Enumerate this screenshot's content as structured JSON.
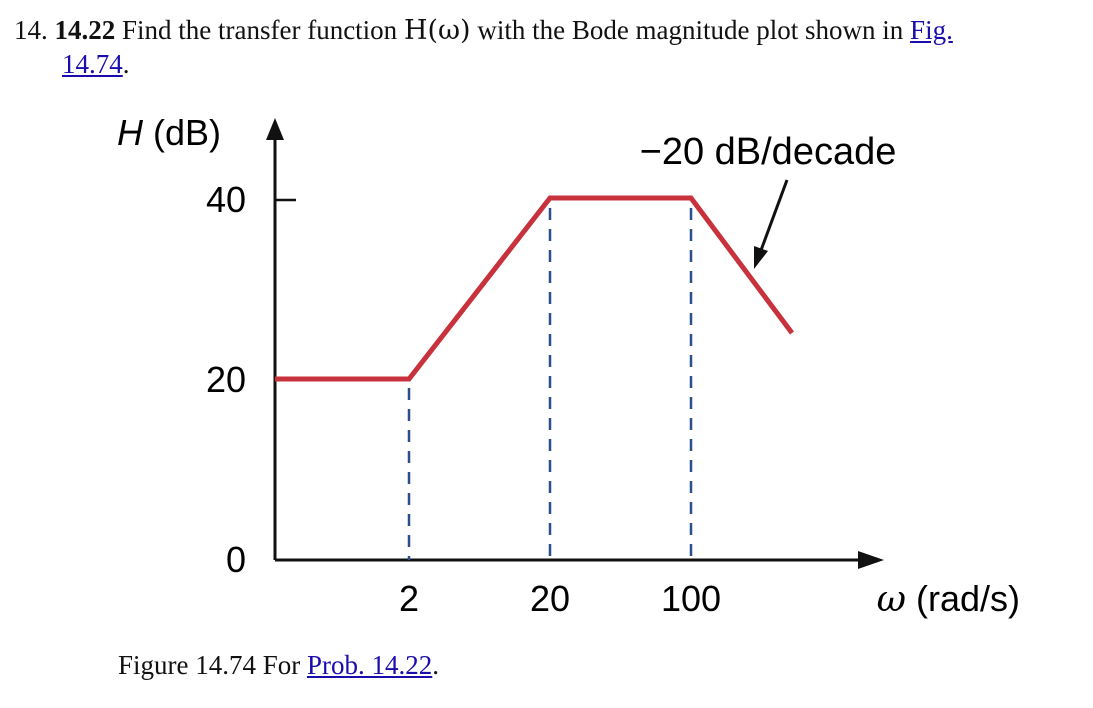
{
  "problem": {
    "number": "14.",
    "id": "14.22",
    "text_before": "Find the transfer function",
    "math": "H(ω)",
    "text_after": "with the Bode magnitude plot shown in",
    "fig_link_part1": "Fig.",
    "fig_link_part2": "14.74",
    "trailing_period": "."
  },
  "figure": {
    "caption_text": "Figure 14.74 For",
    "caption_link": "Prob. 14.22",
    "caption_period": "."
  },
  "chart_data": {
    "type": "line",
    "ylabel": "H (dB)",
    "xlabel": "ω (rad/s)",
    "y_ticks": [
      "40",
      "20",
      "0"
    ],
    "x_ticks": [
      "2",
      "20",
      "100"
    ],
    "x_scale": "log",
    "annotation": "−20 dB/decade",
    "colors": {
      "curve": "#c8323c",
      "dashed": "#2b4f8c",
      "axes": "#111111"
    },
    "series": [
      {
        "x": [
          2,
          20,
          100
        ],
        "y": [
          20,
          40,
          40
        ]
      }
    ],
    "flat_start_y": 20,
    "end_slope_db_per_decade": -20
  }
}
